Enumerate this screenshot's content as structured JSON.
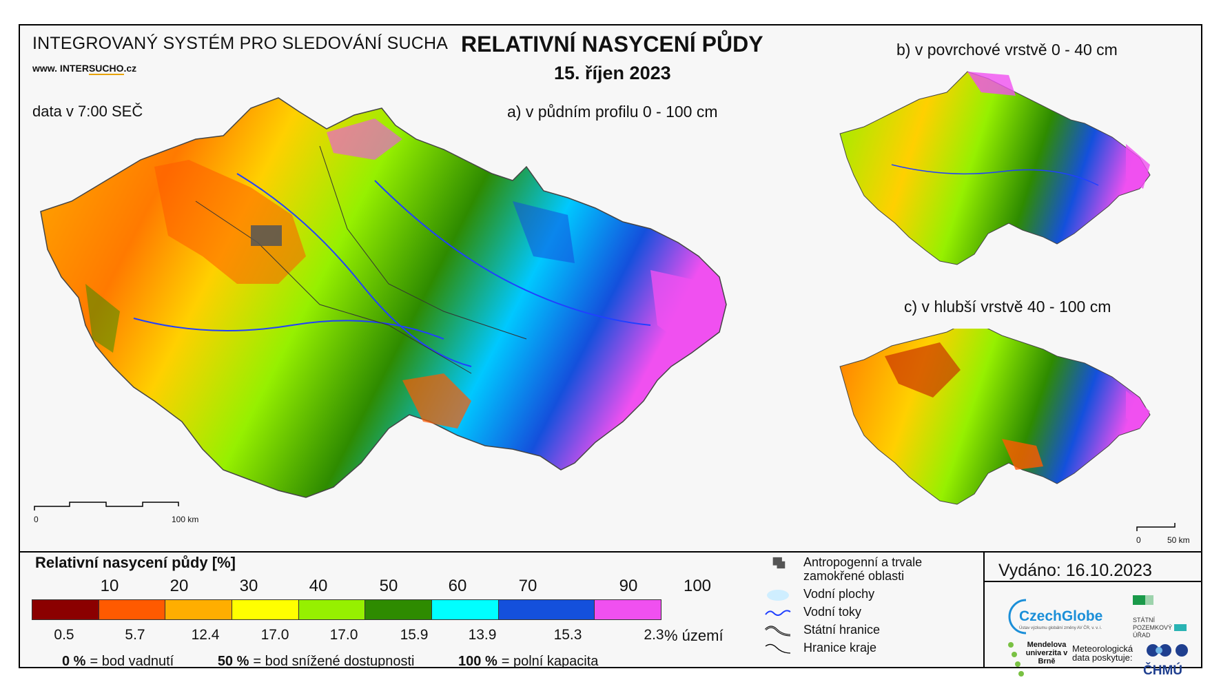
{
  "header": {
    "system_title": "INTEGROVANÝ SYSTÉM PRO SLEDOVÁNÍ SUCHA",
    "website_prefix": "www. INTER",
    "website_highlight": "SUCHO",
    "website_suffix": ".cz",
    "data_time": "data v 7:00 SEČ",
    "map_title": "RELATIVNÍ NASYCENÍ PŮDY",
    "map_date": "15. říjen 2023"
  },
  "panels": {
    "a_label": "a) v půdním profilu 0 - 100 cm",
    "b_label": "b) v povrchové vrstvě 0 - 40 cm",
    "c_label": "c) v hlubší vrstvě 40 - 100 cm"
  },
  "scalebars": {
    "main_start": "0",
    "main_end": "100 km",
    "small_start": "0",
    "small_end": "50 km"
  },
  "legend": {
    "title": "Relativní nasycení půdy [%]",
    "thresholds": [
      "10",
      "20",
      "30",
      "40",
      "50",
      "60",
      "70",
      "90",
      "100"
    ],
    "classes": [
      {
        "color": "#8b0000",
        "share": "0.5"
      },
      {
        "color": "#ff5a00",
        "share": "5.7"
      },
      {
        "color": "#ffae00",
        "share": "12.4"
      },
      {
        "color": "#ffff00",
        "share": "17.0"
      },
      {
        "color": "#96f000",
        "share": "17.0"
      },
      {
        "color": "#2e8b00",
        "share": "15.9"
      },
      {
        "color": "#00ffff",
        "share": "13.9"
      },
      {
        "color": "#1450dc",
        "share": "15.3"
      },
      {
        "color": "#f050f0",
        "share": "2.3"
      }
    ],
    "share_unit": "% území",
    "notes": [
      {
        "value": "0 %",
        "text": "= bod vadnutí"
      },
      {
        "value": "50 %",
        "text": "= bod snížené dostupnosti"
      },
      {
        "value": "100 %",
        "text": "= polní kapacita"
      }
    ]
  },
  "symbols": {
    "anthropogenic": "Antropogenní a trvale zamokřené oblasti",
    "water_bodies": "Vodní plochy",
    "rivers": "Vodní toky",
    "state_border": "Státní hranice",
    "region_border": "Hranice kraje"
  },
  "footer": {
    "issued": "Vydáno: 16.10.2023",
    "czechglobe": "CzechGlobe",
    "czechglobe_sub": "Ústav výzkumu globální změny AV ČR, v. v. i.",
    "spu": "STÁTNÍ POZEMKOVÝ ÚŘAD",
    "mendel": "Mendelova univerzita v Brně",
    "meteo": "Meteorologická data poskytuje:",
    "chmu": "ČHMÚ"
  }
}
